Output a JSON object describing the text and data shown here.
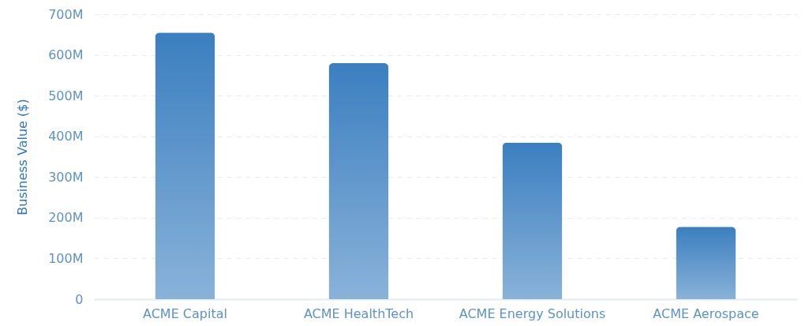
{
  "chart_data": {
    "type": "bar",
    "ylabel": "Business Value ($)",
    "categories": [
      "ACME Capital",
      "ACME HealthTech",
      "ACME Energy Solutions",
      "ACME Aerospace"
    ],
    "values": [
      655,
      580,
      385,
      178
    ],
    "color": "#3b7fc0",
    "ylim": [
      0,
      700
    ],
    "yticks": [
      0,
      {
        "value": 100,
        "label": "100M"
      },
      {
        "value": 200,
        "label": "200M"
      },
      {
        "value": 300,
        "label": "300M"
      },
      {
        "value": 400,
        "label": "400M"
      },
      {
        "value": 500,
        "label": "500M"
      },
      {
        "value": 600,
        "label": "600M"
      },
      {
        "value": 700,
        "label": "700M"
      }
    ],
    "grid": "y"
  }
}
